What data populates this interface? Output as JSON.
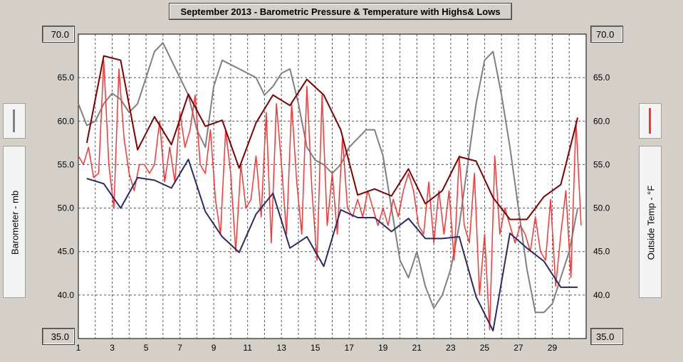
{
  "chart_data": {
    "type": "line",
    "title": "September 2013 - Barometric Pressure & Temperature with Highs& Lows",
    "xlabel": "",
    "y_left_label": "Barometer - mb",
    "y_right_label": "Outside Temp - °F",
    "x_ticks": [
      "1",
      "3",
      "5",
      "7",
      "9",
      "11",
      "13",
      "15",
      "17",
      "19",
      "21",
      "23",
      "25",
      "27",
      "29"
    ],
    "xlim": [
      1,
      31
    ],
    "ylim": [
      35,
      70
    ],
    "y_ticks": [
      "35.0",
      "40.0",
      "45.0",
      "50.0",
      "55.0",
      "60.0",
      "65.0",
      "70.0"
    ],
    "grid": true,
    "colors": {
      "barometer": "#808080",
      "outside_temp": "#ff3333",
      "high": "#800000",
      "low": "#2a2a66"
    },
    "series": [
      {
        "name": "Barometer",
        "x": [
          1,
          1.5,
          2,
          2.5,
          3,
          3.5,
          4,
          4.5,
          5,
          5.5,
          6,
          6.5,
          7,
          7.5,
          8,
          8.5,
          9,
          9.5,
          10,
          10.5,
          11,
          11.5,
          12,
          12.5,
          13,
          13.5,
          14,
          14.5,
          15,
          15.5,
          16,
          16.5,
          17,
          17.5,
          18,
          18.5,
          19,
          19.5,
          20,
          20.5,
          21,
          21.5,
          22,
          22.5,
          23,
          23.5,
          24,
          24.5,
          25,
          25.5,
          26,
          26.5,
          27,
          27.5,
          28,
          28.5,
          29,
          29.5,
          30,
          30.5
        ],
        "values": [
          62,
          59.5,
          60,
          62,
          63.2,
          62.5,
          61,
          62,
          65,
          68,
          69,
          67,
          65,
          63,
          59,
          57,
          64,
          67,
          66.5,
          66,
          65.5,
          65,
          63,
          64,
          65.5,
          66,
          62,
          57,
          55.5,
          55,
          54,
          55,
          57,
          58,
          59,
          59,
          56,
          50,
          44,
          42,
          45,
          41,
          38.5,
          40,
          43,
          48,
          55,
          62,
          67,
          68,
          63,
          57,
          50,
          43,
          38,
          38,
          39,
          42,
          45,
          50
        ]
      },
      {
        "name": "Outside Temp",
        "x": [
          1,
          1.3,
          1.6,
          1.9,
          2.2,
          2.5,
          2.8,
          3.1,
          3.4,
          3.7,
          4,
          4.3,
          4.6,
          4.9,
          5.2,
          5.5,
          5.8,
          6.1,
          6.4,
          6.7,
          7,
          7.3,
          7.6,
          7.9,
          8.2,
          8.5,
          8.8,
          9.1,
          9.4,
          9.7,
          10,
          10.3,
          10.6,
          10.9,
          11.2,
          11.5,
          11.8,
          12.1,
          12.4,
          12.7,
          13,
          13.3,
          13.6,
          13.9,
          14.2,
          14.5,
          14.8,
          15.1,
          15.4,
          15.7,
          16,
          16.3,
          16.6,
          16.9,
          17.2,
          17.5,
          17.8,
          18.1,
          18.4,
          18.7,
          19,
          19.3,
          19.6,
          19.9,
          20.2,
          20.5,
          20.8,
          21.1,
          21.4,
          21.7,
          22,
          22.3,
          22.6,
          22.9,
          23.2,
          23.5,
          23.8,
          24.1,
          24.4,
          24.7,
          25,
          25.3,
          25.6,
          25.9,
          26.2,
          26.5,
          26.8,
          27.1,
          27.4,
          27.7,
          28,
          28.3,
          28.6,
          28.9,
          29.2,
          29.5,
          29.8,
          30.1,
          30.4,
          30.7
        ],
        "values": [
          56,
          55,
          57,
          53.5,
          54,
          67,
          55,
          50,
          66,
          58,
          54,
          52,
          55,
          55,
          54,
          55,
          60,
          53,
          57,
          53,
          61,
          57,
          59,
          63,
          55,
          54,
          59,
          51,
          47,
          59,
          54,
          45,
          55,
          50,
          51,
          56,
          49,
          61,
          46,
          62,
          55,
          47,
          62,
          53,
          47,
          64,
          52,
          44,
          63,
          48,
          54,
          47,
          58,
          50,
          49,
          51,
          49,
          52,
          50,
          48,
          50,
          48,
          51,
          49,
          52,
          54,
          52,
          48,
          47,
          53,
          46,
          52,
          47,
          52,
          44,
          56,
          48,
          46,
          54,
          40,
          47,
          36,
          56,
          47,
          50,
          48,
          46,
          48,
          47,
          45,
          49,
          45,
          44,
          51,
          41,
          47,
          52,
          42,
          60,
          48
        ]
      },
      {
        "name": "High",
        "x": [
          1.5,
          2.5,
          3.5,
          4.5,
          5.5,
          6.5,
          7.5,
          8.5,
          9.5,
          10.5,
          11.5,
          12.5,
          13.5,
          14.5,
          15.5,
          16.5,
          17.5,
          18.5,
          19.5,
          20.5,
          21.5,
          22.5,
          23.5,
          24.5,
          25.5,
          26.5,
          27.5,
          28.5,
          29.5,
          30.5
        ],
        "values": [
          57.5,
          67.5,
          67,
          56.7,
          60.5,
          57.3,
          63.1,
          59.4,
          60.1,
          54.6,
          59.8,
          63,
          61.8,
          64.8,
          63,
          59,
          51.5,
          52.2,
          51.4,
          54.5,
          50.5,
          52,
          55.9,
          55.4,
          51.2,
          48.7,
          48.7,
          51.3,
          52.7,
          60.4
        ]
      },
      {
        "name": "Low",
        "x": [
          1.5,
          2.5,
          3.5,
          4.5,
          5.5,
          6.5,
          7.5,
          8.5,
          9.5,
          10.5,
          11.5,
          12.5,
          13.5,
          14.5,
          15.5,
          16.5,
          17.5,
          18.5,
          19.5,
          20.5,
          21.5,
          22.5,
          23.5,
          24.5,
          25.5,
          26.5,
          27.5,
          28.5,
          29.5,
          30.5
        ],
        "values": [
          53.4,
          52.8,
          50,
          53.5,
          53.2,
          52.3,
          55.6,
          49.6,
          46.7,
          44.9,
          49.3,
          51.7,
          45.4,
          46.7,
          43.3,
          49.8,
          48.9,
          48.9,
          47.3,
          48.8,
          46.5,
          46.5,
          46.7,
          39.8,
          35.9,
          47.1,
          45.4,
          43.9,
          40.9,
          40.9
        ]
      }
    ]
  }
}
